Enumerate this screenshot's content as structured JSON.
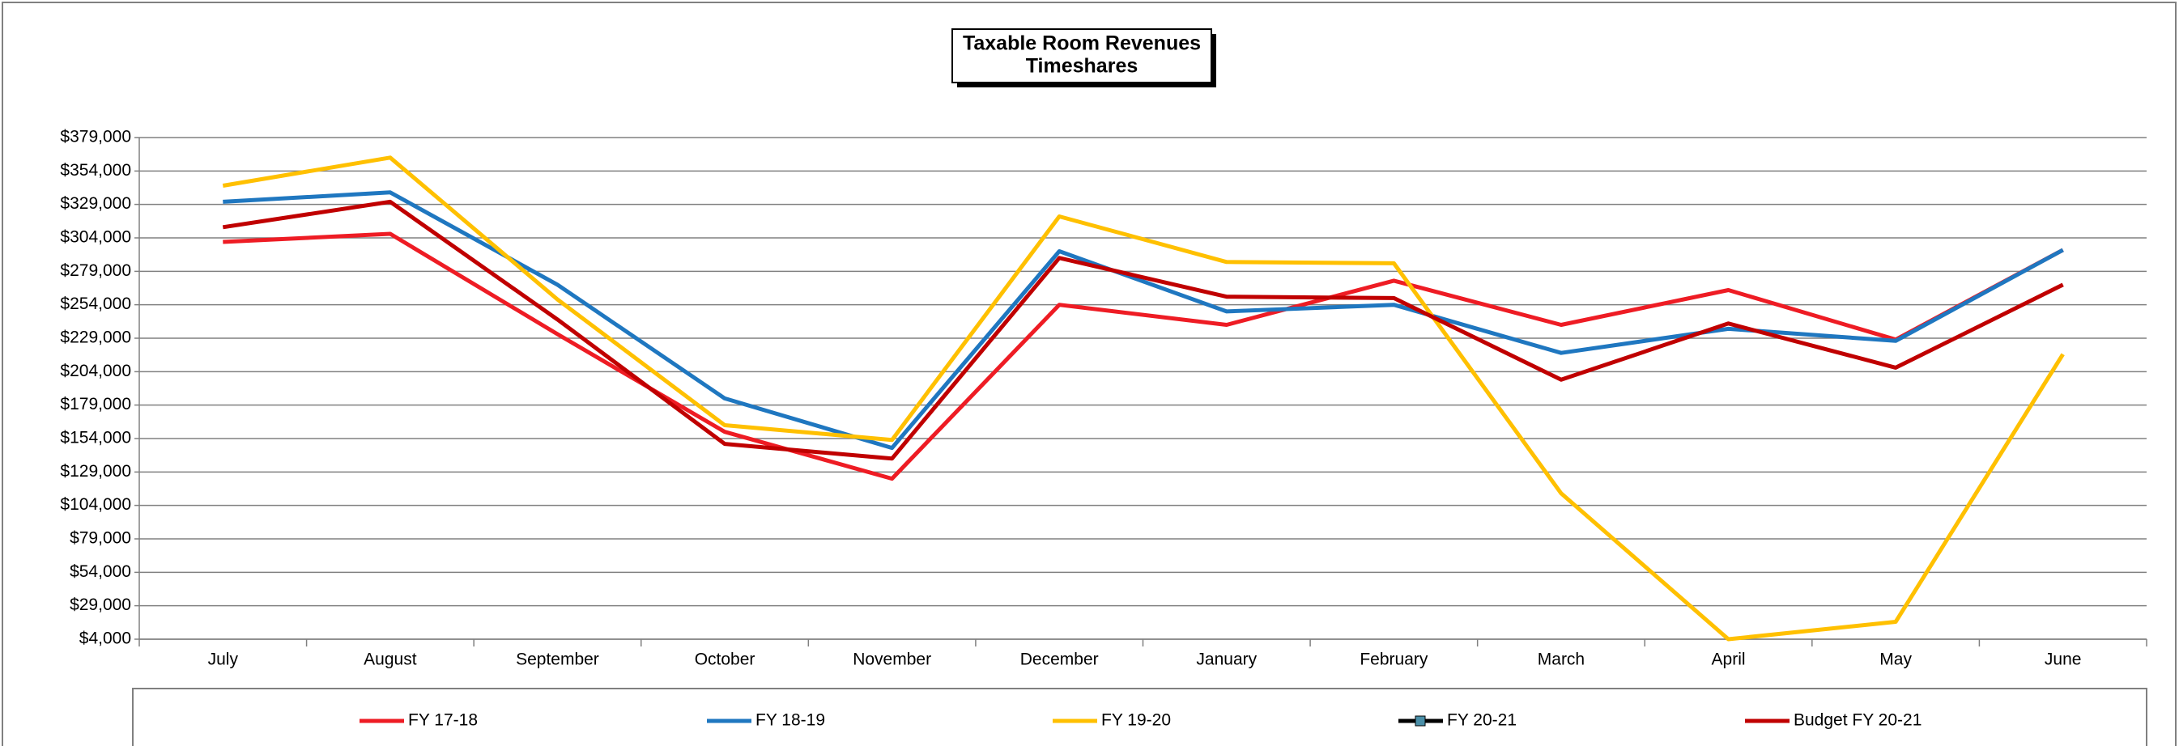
{
  "chart_data": {
    "type": "line",
    "title": "Taxable Room Revenues",
    "subtitle": "Timeshares",
    "categories": [
      "July",
      "August",
      "September",
      "October",
      "November",
      "December",
      "January",
      "February",
      "March",
      "April",
      "May",
      "June"
    ],
    "series": [
      {
        "name": "FY 17-18",
        "color": "#ee1c24",
        "values": [
          301000,
          307000,
          232000,
          159000,
          124000,
          254000,
          239000,
          272000,
          239000,
          265000,
          228000,
          295000
        ]
      },
      {
        "name": "FY 18-19",
        "color": "#1f77c0",
        "values": [
          331000,
          338000,
          269000,
          184000,
          147000,
          294000,
          249000,
          254000,
          218000,
          236000,
          227000,
          295000
        ]
      },
      {
        "name": "FY 19-20",
        "color": "#ffc000",
        "values": [
          343000,
          364000,
          258000,
          164000,
          153000,
          320000,
          286000,
          285000,
          113000,
          4000,
          17000,
          217000
        ]
      },
      {
        "name": "FY 20-21",
        "color": "#000000",
        "marker_color": "#4a8fa8",
        "values": [
          null,
          null,
          null,
          null,
          null,
          null,
          null,
          null,
          null,
          null,
          null,
          null
        ]
      },
      {
        "name": "Budget FY 20-21",
        "color": "#c00000",
        "values": [
          312000,
          331000,
          243000,
          150000,
          139000,
          289000,
          260000,
          259000,
          198000,
          240000,
          207000,
          269000
        ]
      }
    ],
    "ylim": [
      4000,
      379000
    ],
    "yticks": [
      {
        "value": 4000,
        "label": "$4,000"
      },
      {
        "value": 29000,
        "label": "$29,000"
      },
      {
        "value": 54000,
        "label": "$54,000"
      },
      {
        "value": 79000,
        "label": "$79,000"
      },
      {
        "value": 104000,
        "label": "$104,000"
      },
      {
        "value": 129000,
        "label": "$129,000"
      },
      {
        "value": 154000,
        "label": "$154,000"
      },
      {
        "value": 179000,
        "label": "$179,000"
      },
      {
        "value": 204000,
        "label": "$204,000"
      },
      {
        "value": 229000,
        "label": "$229,000"
      },
      {
        "value": 254000,
        "label": "$254,000"
      },
      {
        "value": 279000,
        "label": "$279,000"
      },
      {
        "value": 304000,
        "label": "$304,000"
      },
      {
        "value": 329000,
        "label": "$329,000"
      },
      {
        "value": 354000,
        "label": "$354,000"
      },
      {
        "value": 379000,
        "label": "$379,000"
      }
    ],
    "grid": true,
    "legend": "bottom"
  }
}
